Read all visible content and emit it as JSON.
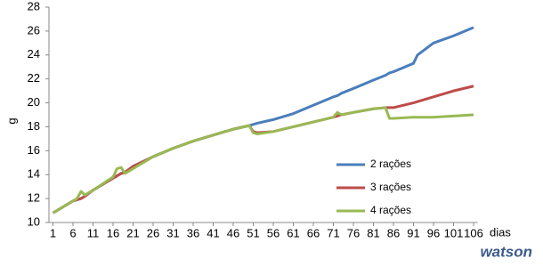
{
  "chart_data": {
    "type": "line",
    "xlabel": "dias",
    "ylabel": "g",
    "x": [
      1,
      6,
      7,
      8,
      9,
      11,
      16,
      17,
      18,
      19,
      21,
      26,
      31,
      36,
      41,
      46,
      50,
      51,
      52,
      56,
      61,
      66,
      71,
      72,
      73,
      76,
      81,
      84,
      85,
      86,
      91,
      92,
      96,
      101,
      106
    ],
    "series": [
      {
        "name": "2 rações",
        "color": "#4a7ebb",
        "values": [
          10.8,
          11.8,
          11.9,
          12.0,
          12.2,
          12.7,
          13.7,
          13.9,
          14.1,
          14.2,
          14.7,
          15.5,
          16.2,
          16.8,
          17.3,
          17.8,
          18.1,
          18.2,
          18.3,
          18.6,
          19.1,
          19.8,
          20.5,
          20.6,
          20.8,
          21.2,
          21.9,
          22.3,
          22.5,
          22.6,
          23.3,
          24.0,
          25.0,
          25.6,
          26.3
        ]
      },
      {
        "name": "3 rações",
        "color": "#be4b48",
        "values": [
          10.8,
          11.8,
          11.9,
          12.0,
          12.2,
          12.7,
          13.7,
          13.9,
          14.1,
          14.2,
          14.7,
          15.5,
          16.2,
          16.8,
          17.3,
          17.8,
          18.1,
          17.6,
          17.5,
          17.6,
          18.0,
          18.4,
          18.8,
          18.9,
          19.0,
          19.2,
          19.5,
          19.6,
          19.6,
          19.6,
          20.0,
          20.1,
          20.5,
          21.0,
          21.4
        ]
      },
      {
        "name": "4 rações",
        "color": "#98b954",
        "values": [
          10.8,
          11.8,
          12.0,
          12.6,
          12.3,
          12.7,
          13.8,
          14.5,
          14.6,
          14.1,
          14.5,
          15.5,
          16.2,
          16.8,
          17.3,
          17.8,
          18.1,
          17.5,
          17.4,
          17.6,
          18.0,
          18.4,
          18.8,
          19.2,
          19.0,
          19.2,
          19.5,
          19.6,
          18.7,
          18.7,
          18.8,
          18.8,
          18.8,
          18.9,
          19.0
        ]
      }
    ],
    "xlim": [
      0,
      107
    ],
    "xticks": [
      1,
      6,
      11,
      16,
      21,
      26,
      31,
      36,
      41,
      46,
      51,
      56,
      61,
      66,
      71,
      76,
      81,
      86,
      91,
      96,
      101,
      106
    ],
    "ylim": [
      10,
      28
    ],
    "yticks": [
      10,
      12,
      14,
      16,
      18,
      20,
      22,
      24,
      26,
      28
    ],
    "grid": false,
    "legend": "right",
    "logo": "watson"
  }
}
